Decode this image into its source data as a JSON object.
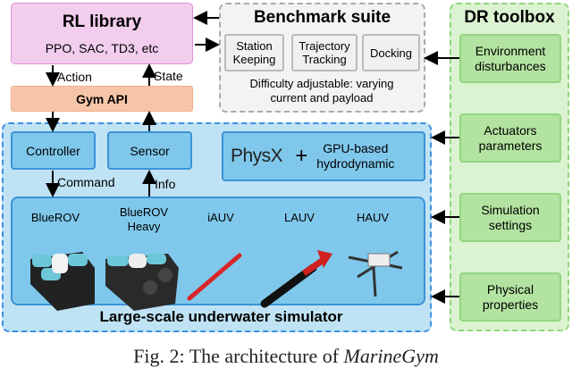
{
  "rl_library": {
    "title": "RL library",
    "algorithms": "PPO, SAC, TD3, etc"
  },
  "gym_api": "Gym API",
  "edges": {
    "action": "Action",
    "state": "State",
    "command": "Command",
    "info": "Info"
  },
  "benchmark": {
    "title": "Benchmark suite",
    "tasks": [
      [
        "Station",
        "Keeping"
      ],
      [
        "Trajectory",
        "Tracking"
      ],
      [
        "Docking",
        ""
      ]
    ],
    "note": [
      "Difficulty adjustable: varying",
      "current and payload"
    ]
  },
  "dr_toolbox": {
    "title": "DR toolbox",
    "items": [
      [
        "Environment",
        "disturbances"
      ],
      [
        "Actuators",
        "parameters"
      ],
      [
        "Simulation",
        "settings"
      ],
      [
        "Physical",
        "properties"
      ]
    ]
  },
  "simulator": {
    "title": "Large-scale underwater simulator",
    "controller": "Controller",
    "sensor": "Sensor",
    "physx_logo": "PhysX",
    "plus": "+",
    "hydro": [
      "GPU-based",
      "hydrodynamic"
    ],
    "vehicles": [
      [
        "BlueROV",
        ""
      ],
      [
        "BlueROV",
        "Heavy"
      ],
      [
        "iAUV",
        ""
      ],
      [
        "LAUV",
        ""
      ],
      [
        "HAUV",
        ""
      ]
    ]
  },
  "caption": {
    "prefix": "Fig. 2: The architecture of ",
    "name": "MarineGym"
  },
  "colors": {
    "rl": "#f2cdee",
    "gym": "#f6c5a8",
    "benchmark": "#f3f3f3",
    "dr": "#dcf3d2",
    "sim": "#bfe3f5",
    "box": "#7fc8ec"
  }
}
